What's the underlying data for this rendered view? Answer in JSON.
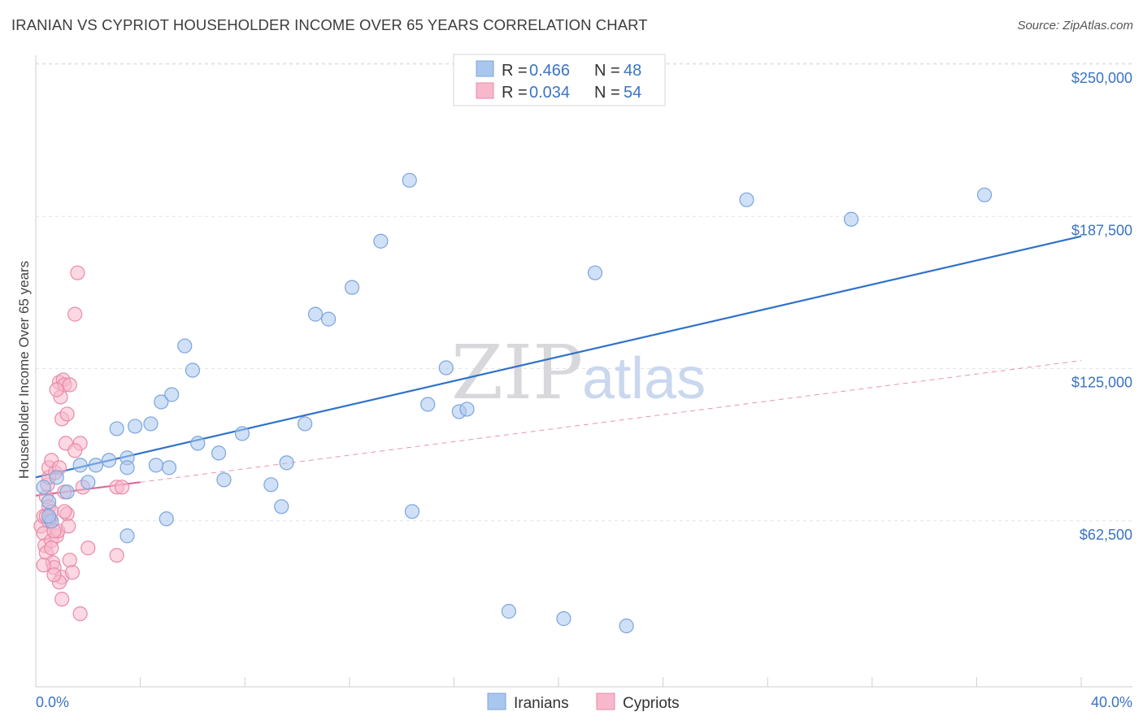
{
  "title": "IRANIAN VS CYPRIOT HOUSEHOLDER INCOME OVER 65 YEARS CORRELATION CHART",
  "source": "Source: ZipAtlas.com",
  "chart_data": {
    "type": "scatter",
    "title": "IRANIAN VS CYPRIOT HOUSEHOLDER INCOME OVER 65 YEARS CORRELATION CHART",
    "ylabel": "Householder Income Over 65 years",
    "xlim": [
      0,
      40
    ],
    "ylim": [
      0,
      250000
    ],
    "x_tick_labels": [
      "0.0%",
      "40.0%"
    ],
    "y_ticks": [
      62500,
      125000,
      187500,
      250000
    ],
    "y_tick_labels": [
      "$62,500",
      "$125,000",
      "$187,500",
      "$250,000"
    ],
    "watermark": [
      "ZIP",
      "atlas"
    ],
    "legend": [
      {
        "r_label": "R =",
        "r_value": "0.466",
        "n_label": "N =",
        "n_value": "48"
      },
      {
        "r_label": "R =",
        "r_value": "0.034",
        "n_label": "N =",
        "n_value": "54"
      }
    ],
    "series": [
      {
        "name": "Iranians",
        "color": "#a9c6ee",
        "stroke": "#7aa5dc",
        "trend_color": "#2f72c8",
        "trend": {
          "x0": 0.0,
          "y0": 86000,
          "x1": 40.0,
          "y1": 185000
        },
        "points": [
          [
            0.3,
            82000
          ],
          [
            0.5,
            76000
          ],
          [
            0.6,
            68000
          ],
          [
            0.5,
            70000
          ],
          [
            0.8,
            86000
          ],
          [
            1.2,
            80000
          ],
          [
            1.7,
            91000
          ],
          [
            2.3,
            91000
          ],
          [
            2.0,
            84000
          ],
          [
            2.8,
            93000
          ],
          [
            3.5,
            94000
          ],
          [
            3.1,
            106000
          ],
          [
            3.8,
            107000
          ],
          [
            3.5,
            90000
          ],
          [
            4.6,
            91000
          ],
          [
            4.8,
            117000
          ],
          [
            4.4,
            108000
          ],
          [
            5.2,
            120000
          ],
          [
            5.7,
            140000
          ],
          [
            6.0,
            130000
          ],
          [
            5.1,
            90000
          ],
          [
            6.2,
            100000
          ],
          [
            7.0,
            96000
          ],
          [
            7.2,
            85000
          ],
          [
            7.9,
            104000
          ],
          [
            9.6,
            92000
          ],
          [
            9.0,
            83000
          ],
          [
            9.4,
            74000
          ],
          [
            10.3,
            108000
          ],
          [
            10.7,
            153000
          ],
          [
            11.2,
            151000
          ],
          [
            12.1,
            164000
          ],
          [
            13.2,
            183000
          ],
          [
            14.3,
            208000
          ],
          [
            14.4,
            72000
          ],
          [
            15.0,
            116000
          ],
          [
            15.7,
            131000
          ],
          [
            16.2,
            113000
          ],
          [
            16.5,
            114000
          ],
          [
            18.1,
            31000
          ],
          [
            20.2,
            28000
          ],
          [
            21.4,
            170000
          ],
          [
            22.6,
            25000
          ],
          [
            27.2,
            200000
          ],
          [
            31.2,
            192000
          ],
          [
            36.3,
            202000
          ],
          [
            5.0,
            69000
          ],
          [
            3.5,
            62000
          ]
        ]
      },
      {
        "name": "Cypriots",
        "color": "#f7b8cb",
        "stroke": "#e98aa8",
        "trend_color": "#e0649a",
        "trend": {
          "x0": 0.0,
          "y0": 78500,
          "x1": 4.0,
          "y1": 84000
        },
        "trend_ext": {
          "x0": 4.0,
          "y0": 84000,
          "x1": 40.0,
          "y1": 134000
        },
        "points": [
          [
            0.2,
            66000
          ],
          [
            0.3,
            70000
          ],
          [
            0.3,
            63000
          ],
          [
            0.35,
            58000
          ],
          [
            0.4,
            55000
          ],
          [
            0.4,
            78000
          ],
          [
            0.45,
            83000
          ],
          [
            0.5,
            86000
          ],
          [
            0.5,
            90000
          ],
          [
            0.5,
            74000
          ],
          [
            0.55,
            69000
          ],
          [
            0.6,
            72000
          ],
          [
            0.6,
            60000
          ],
          [
            0.65,
            51000
          ],
          [
            0.7,
            49000
          ],
          [
            0.75,
            88000
          ],
          [
            0.8,
            62000
          ],
          [
            0.85,
            64000
          ],
          [
            0.9,
            125000
          ],
          [
            0.95,
            119000
          ],
          [
            1.0,
            110000
          ],
          [
            1.05,
            126000
          ],
          [
            1.1,
            124000
          ],
          [
            1.15,
            100000
          ],
          [
            1.2,
            71000
          ],
          [
            1.0,
            45000
          ],
          [
            0.9,
            43000
          ],
          [
            1.0,
            36000
          ],
          [
            1.3,
            52000
          ],
          [
            1.25,
            66000
          ],
          [
            1.5,
            153000
          ],
          [
            1.6,
            170000
          ],
          [
            1.7,
            100000
          ],
          [
            1.8,
            82000
          ],
          [
            2.0,
            57000
          ],
          [
            1.1,
            80000
          ],
          [
            0.3,
            50000
          ],
          [
            0.6,
            93000
          ],
          [
            0.8,
            122000
          ],
          [
            1.3,
            124000
          ],
          [
            1.4,
            47000
          ],
          [
            0.7,
            46000
          ],
          [
            1.7,
            30000
          ],
          [
            3.1,
            82000
          ],
          [
            3.3,
            82000
          ],
          [
            3.1,
            54000
          ],
          [
            0.5,
            68000
          ],
          [
            0.6,
            57000
          ],
          [
            0.9,
            90000
          ],
          [
            1.2,
            112000
          ],
          [
            0.4,
            70000
          ],
          [
            0.7,
            64000
          ],
          [
            1.1,
            72000
          ],
          [
            1.5,
            97000
          ]
        ]
      }
    ]
  }
}
